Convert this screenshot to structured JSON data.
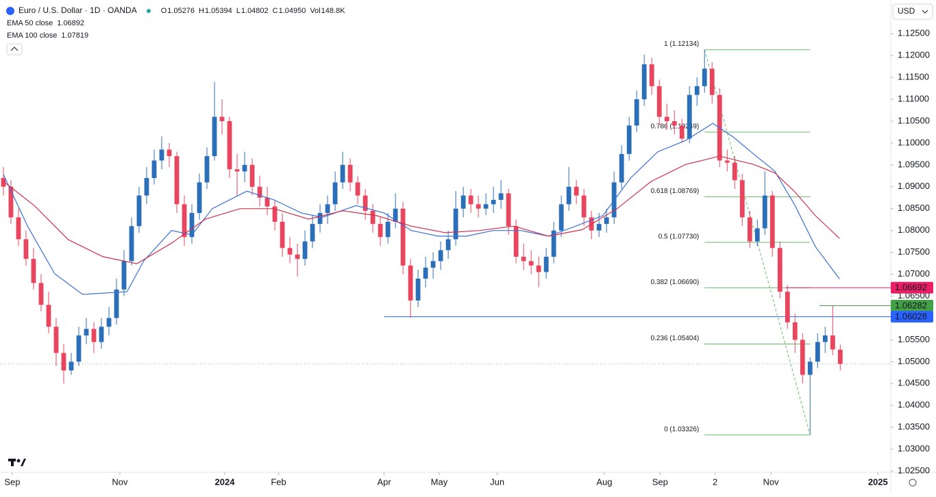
{
  "header": {
    "symbol": "Euro / U.S. Dollar · 1D · OANDA",
    "fields": [
      {
        "key": "O",
        "value": "1.05276"
      },
      {
        "key": "H",
        "value": "1.05394"
      },
      {
        "key": "L",
        "value": "1.04802"
      },
      {
        "key": "C",
        "value": "1.04950"
      },
      {
        "key": "Vol",
        "value": "148.8K"
      }
    ],
    "currency": "USD"
  },
  "chart_data": {
    "type": "candlestick",
    "up_color": "#2b6fb8",
    "down_color": "#e8455e",
    "xlim": [
      -0.45,
      117.7
    ],
    "ylim": [
      1.0247,
      1.1327
    ],
    "xticks": [
      {
        "value": 1.18,
        "label": "Sep"
      },
      {
        "value": 15.45,
        "label": "Nov"
      },
      {
        "value": 29.36,
        "label": "2024"
      },
      {
        "value": 36.5,
        "label": "Feb"
      },
      {
        "value": 50.5,
        "label": "Apr"
      },
      {
        "value": 57.8,
        "label": "May"
      },
      {
        "value": 65.5,
        "label": "Jun"
      },
      {
        "value": 79.7,
        "label": "Aug"
      },
      {
        "value": 87.1,
        "label": "Sep"
      },
      {
        "value": 94.4,
        "label": "2"
      },
      {
        "value": 101.8,
        "label": "Nov"
      },
      {
        "value": 116,
        "label": "2025"
      }
    ],
    "yticks": [
      {
        "value": 1.025,
        "label": "1.02500"
      },
      {
        "value": 1.03,
        "label": "1.03000"
      },
      {
        "value": 1.035,
        "label": "1.03500"
      },
      {
        "value": 1.04,
        "label": "1.04000"
      },
      {
        "value": 1.045,
        "label": "1.04500"
      },
      {
        "value": 1.05,
        "label": "1.05000"
      },
      {
        "value": 1.055,
        "label": "1.05500"
      },
      {
        "value": 1.06,
        "label": "1.06000"
      },
      {
        "value": 1.065,
        "label": "1.06500"
      },
      {
        "value": 1.07,
        "label": "1.07000"
      },
      {
        "value": 1.075,
        "label": "1.07500"
      },
      {
        "value": 1.08,
        "label": "1.08000"
      },
      {
        "value": 1.085,
        "label": "1.08500"
      },
      {
        "value": 1.09,
        "label": "1.09000"
      },
      {
        "value": 1.095,
        "label": "1.09500"
      },
      {
        "value": 1.1,
        "label": "1.10000"
      },
      {
        "value": 1.105,
        "label": "1.10500"
      },
      {
        "value": 1.11,
        "label": "1.11000"
      },
      {
        "value": 1.115,
        "label": "1.11500"
      },
      {
        "value": 1.12,
        "label": "1.12000"
      },
      {
        "value": 1.125,
        "label": "1.12500"
      }
    ],
    "candles": [
      [
        1.092,
        1.0945,
        1.088,
        1.09
      ],
      [
        1.09,
        1.0915,
        1.0815,
        1.083
      ],
      [
        1.083,
        1.085,
        1.0765,
        1.078
      ],
      [
        1.078,
        1.08,
        1.072,
        1.0735
      ],
      [
        1.0735,
        1.076,
        1.0665,
        1.068
      ],
      [
        1.068,
        1.07,
        1.0615,
        1.063
      ],
      [
        1.063,
        1.066,
        1.0565,
        1.058
      ],
      [
        1.058,
        1.06,
        1.049,
        1.052
      ],
      [
        1.052,
        1.054,
        1.045,
        1.048
      ],
      [
        1.048,
        1.052,
        1.047,
        1.05
      ],
      [
        1.05,
        1.058,
        1.049,
        1.056
      ],
      [
        1.056,
        1.06,
        1.054,
        1.0575
      ],
      [
        1.0575,
        1.059,
        1.052,
        1.0545
      ],
      [
        1.0545,
        1.06,
        1.053,
        1.058
      ],
      [
        1.058,
        1.0625,
        1.056,
        1.06
      ],
      [
        1.06,
        1.069,
        1.0585,
        1.0665
      ],
      [
        1.0665,
        1.0755,
        1.065,
        1.073
      ],
      [
        1.073,
        1.083,
        1.072,
        1.081
      ],
      [
        1.081,
        1.09,
        1.0795,
        1.088
      ],
      [
        1.088,
        1.0945,
        1.086,
        1.092
      ],
      [
        1.092,
        1.0985,
        1.0905,
        1.096
      ],
      [
        1.096,
        1.1015,
        1.094,
        1.0985
      ],
      [
        1.0985,
        1.1,
        1.0945,
        1.097
      ],
      [
        1.097,
        1.098,
        1.084,
        1.086
      ],
      [
        1.086,
        1.088,
        1.0765,
        1.0785
      ],
      [
        1.0785,
        1.086,
        1.077,
        1.084
      ],
      [
        1.084,
        1.093,
        1.0825,
        1.091
      ],
      [
        1.091,
        1.099,
        1.0895,
        1.097
      ],
      [
        1.097,
        1.114,
        1.096,
        1.106
      ],
      [
        1.106,
        1.11,
        1.102,
        1.105
      ],
      [
        1.105,
        1.106,
        1.092,
        1.094
      ],
      [
        1.094,
        1.0975,
        1.088,
        1.0935
      ],
      [
        1.0935,
        1.098,
        1.091,
        1.095
      ],
      [
        1.095,
        1.0965,
        1.088,
        1.09
      ],
      [
        1.09,
        1.0925,
        1.0855,
        1.0875
      ],
      [
        1.0875,
        1.09,
        1.0835,
        1.0855
      ],
      [
        1.0855,
        1.087,
        1.08,
        1.082
      ],
      [
        1.082,
        1.084,
        1.074,
        1.076
      ],
      [
        1.076,
        1.0785,
        1.0725,
        1.0745
      ],
      [
        1.0745,
        1.077,
        1.0695,
        1.0735
      ],
      [
        1.0735,
        1.08,
        1.072,
        1.0775
      ],
      [
        1.0775,
        1.0835,
        1.076,
        1.0815
      ],
      [
        1.0815,
        1.086,
        1.0795,
        1.084
      ],
      [
        1.084,
        1.088,
        1.0815,
        1.086
      ],
      [
        1.086,
        1.0935,
        1.0845,
        1.091
      ],
      [
        1.091,
        1.098,
        1.0895,
        1.095
      ],
      [
        1.095,
        1.0965,
        1.089,
        1.091
      ],
      [
        1.091,
        1.0925,
        1.086,
        1.088
      ],
      [
        1.088,
        1.0895,
        1.0825,
        1.0845
      ],
      [
        1.0845,
        1.086,
        1.0795,
        1.0815
      ],
      [
        1.0815,
        1.083,
        1.0765,
        1.0785
      ],
      [
        1.0785,
        1.084,
        1.077,
        1.082
      ],
      [
        1.082,
        1.0885,
        1.0805,
        1.085
      ],
      [
        1.085,
        1.0865,
        1.07,
        1.072
      ],
      [
        1.072,
        1.0735,
        1.06,
        1.064
      ],
      [
        1.064,
        1.071,
        1.0625,
        1.069
      ],
      [
        1.069,
        1.074,
        1.067,
        1.0715
      ],
      [
        1.0715,
        1.075,
        1.069,
        1.073
      ],
      [
        1.073,
        1.0775,
        1.071,
        1.0755
      ],
      [
        1.0755,
        1.08,
        1.0735,
        1.078
      ],
      [
        1.078,
        1.089,
        1.0765,
        1.085
      ],
      [
        1.085,
        1.09,
        1.083,
        1.088
      ],
      [
        1.088,
        1.0895,
        1.084,
        1.086
      ],
      [
        1.086,
        1.088,
        1.083,
        1.085
      ],
      [
        1.085,
        1.0885,
        1.0835,
        1.086
      ],
      [
        1.086,
        1.09,
        1.084,
        1.087
      ],
      [
        1.087,
        1.0915,
        1.085,
        1.0885
      ],
      [
        1.0885,
        1.0895,
        1.079,
        1.081
      ],
      [
        1.081,
        1.0825,
        1.0725,
        1.074
      ],
      [
        1.074,
        1.077,
        1.071,
        1.073
      ],
      [
        1.073,
        1.0755,
        1.07,
        1.072
      ],
      [
        1.072,
        1.074,
        1.067,
        1.0705
      ],
      [
        1.0705,
        1.076,
        1.069,
        1.074
      ],
      [
        1.074,
        1.082,
        1.0725,
        1.08
      ],
      [
        1.08,
        1.088,
        1.0785,
        1.086
      ],
      [
        1.086,
        1.0945,
        1.0845,
        1.09
      ],
      [
        1.09,
        1.0915,
        1.086,
        1.088
      ],
      [
        1.088,
        1.0895,
        1.081,
        1.083
      ],
      [
        1.083,
        1.0845,
        1.078,
        1.08
      ],
      [
        1.08,
        1.084,
        1.0785,
        1.0815
      ],
      [
        1.0815,
        1.085,
        1.0795,
        1.083
      ],
      [
        1.083,
        1.0935,
        1.0815,
        1.091
      ],
      [
        1.091,
        1.0995,
        1.0895,
        1.0975
      ],
      [
        1.0975,
        1.106,
        1.096,
        1.104
      ],
      [
        1.104,
        1.112,
        1.1025,
        1.11
      ],
      [
        1.11,
        1.1202,
        1.1085,
        1.118
      ],
      [
        1.118,
        1.1195,
        1.111,
        1.113
      ],
      [
        1.113,
        1.1145,
        1.104,
        1.106
      ],
      [
        1.106,
        1.109,
        1.103,
        1.105
      ],
      [
        1.105,
        1.1075,
        1.102,
        1.104
      ],
      [
        1.104,
        1.1055,
        1.1,
        1.101
      ],
      [
        1.101,
        1.113,
        1.1,
        1.111
      ],
      [
        1.111,
        1.115,
        1.1085,
        1.113
      ],
      [
        1.113,
        1.12134,
        1.1115,
        1.117
      ],
      [
        1.117,
        1.1185,
        1.109,
        1.111
      ],
      [
        1.111,
        1.1125,
        1.0945,
        1.096
      ],
      [
        1.096,
        1.0985,
        1.0935,
        1.0955
      ],
      [
        1.0955,
        1.097,
        1.0895,
        1.0915
      ],
      [
        1.0915,
        1.093,
        1.081,
        1.083
      ],
      [
        1.083,
        1.0845,
        1.076,
        1.0775
      ],
      [
        1.0775,
        1.0825,
        1.0765,
        1.0805
      ],
      [
        1.0805,
        1.0935,
        1.079,
        1.088
      ],
      [
        1.088,
        1.089,
        1.074,
        1.076
      ],
      [
        1.076,
        1.0775,
        1.0645,
        1.066
      ],
      [
        1.066,
        1.0675,
        1.0575,
        1.059
      ],
      [
        1.059,
        1.061,
        1.052,
        1.055
      ],
      [
        1.055,
        1.0565,
        1.045,
        1.047
      ],
      [
        1.047,
        1.051,
        1.03326,
        1.05
      ],
      [
        1.05,
        1.0565,
        1.0485,
        1.0545
      ],
      [
        1.0545,
        1.058,
        1.052,
        1.056
      ],
      [
        1.056,
        1.06282,
        1.0515,
        1.0528
      ],
      [
        1.05276,
        1.05394,
        1.04802,
        1.0495
      ]
    ],
    "series": [
      {
        "name": "EMA 50 close",
        "legend_value": "1.06892",
        "color": "#3b6fd8",
        "x": [
          0,
          3.2,
          6.8,
          10.5,
          16.4,
          18.6,
          22.3,
          25,
          27.7,
          32.3,
          35.9,
          39.5,
          42.3,
          46.8,
          50.5,
          54.1,
          57.7,
          61.4,
          65,
          68.6,
          72.3,
          75.9,
          79.5,
          83.2,
          86.8,
          90.5,
          94.1,
          96.8,
          99.5,
          102.3,
          105,
          107.7,
          110.9
        ],
        "values": [
          1.0928,
          1.081,
          1.0701,
          1.0654,
          1.066,
          1.073,
          1.08,
          1.079,
          1.085,
          1.089,
          1.087,
          1.084,
          1.083,
          1.0857,
          1.084,
          1.08,
          1.0787,
          1.0787,
          1.08,
          1.08,
          1.0787,
          1.081,
          1.0834,
          1.092,
          1.098,
          1.1006,
          1.1045,
          1.1014,
          1.0975,
          1.0936,
          1.0857,
          1.0763,
          1.06892
        ]
      },
      {
        "name": "EMA 100 close",
        "legend_value": "1.07819",
        "color": "#d0304f",
        "x": [
          0,
          4.1,
          8.6,
          13.2,
          17.7,
          22.3,
          26.8,
          31.4,
          35.9,
          40.5,
          45,
          49.5,
          54.1,
          58.6,
          63.2,
          67.7,
          72.3,
          76.8,
          81.4,
          85.9,
          90.5,
          95,
          99.5,
          102.3,
          105,
          107.7,
          110.9
        ],
        "values": [
          1.0912,
          1.0857,
          1.0779,
          1.074,
          1.0724,
          1.0771,
          1.0826,
          1.085,
          1.085,
          1.0826,
          1.0845,
          1.0834,
          1.081,
          1.0795,
          1.08,
          1.081,
          1.0787,
          1.0802,
          1.085,
          1.0912,
          1.0951,
          1.097,
          1.0951,
          1.0932,
          1.0888,
          1.0834,
          1.07819
        ]
      }
    ],
    "fib_levels": [
      {
        "value": 1.12134,
        "label": "1 (1.12134)"
      },
      {
        "value": 1.10249,
        "label": "0.786 (1.10249)"
      },
      {
        "value": 1.08769,
        "label": "0.618 (1.08769)"
      },
      {
        "value": 1.0773,
        "label": "0.5 (1.07730)"
      },
      {
        "value": 1.0669,
        "label": "0.382 (1.06690)"
      },
      {
        "value": 1.05404,
        "label": "0.236 (1.05404)"
      },
      {
        "value": 1.03326,
        "label": "0 (1.03326)"
      }
    ],
    "fib_color": "#66bb6a",
    "price_lines": [
      {
        "value": 1.06692,
        "color": "#e91e63"
      },
      {
        "value": 1.06282,
        "color": "#43a047"
      },
      {
        "value": 1.06028,
        "color": "#2962ff"
      }
    ]
  }
}
